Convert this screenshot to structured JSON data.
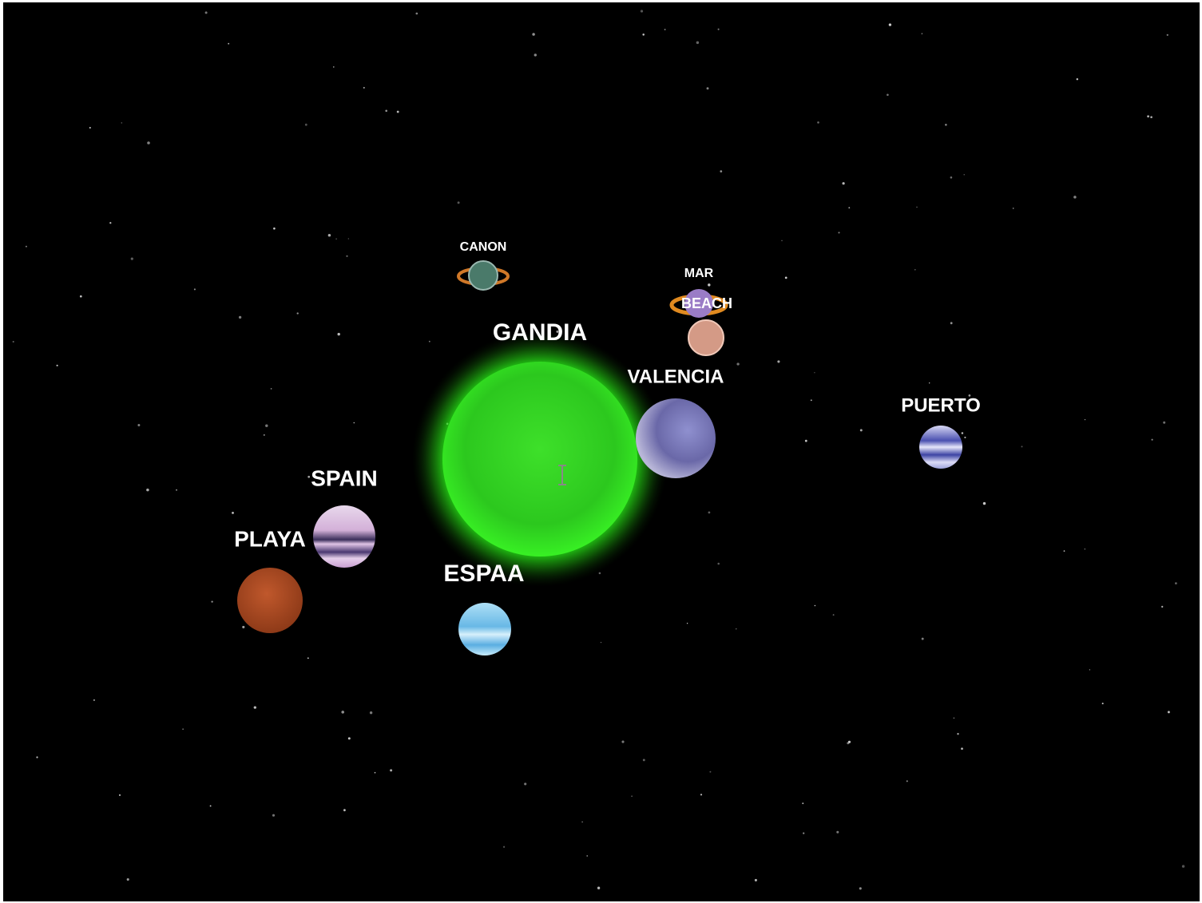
{
  "labels": {
    "canon": "CANON",
    "mar": "MAR",
    "beach": "BEACH",
    "gandia": "GANDIA",
    "valencia": "VALENCIA",
    "puerto": "PUERTO",
    "spain": "SPAIN",
    "playa": "PLAYA",
    "espaa": "ESPAA"
  }
}
